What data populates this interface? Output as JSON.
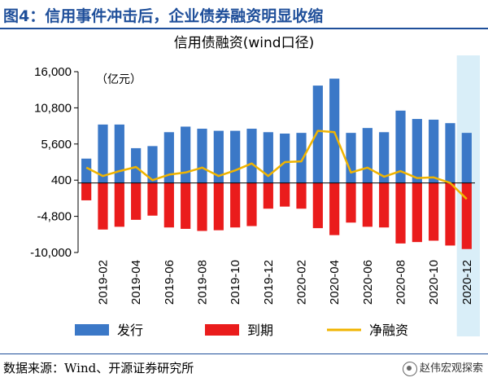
{
  "header": {
    "title": "图4：信用事件冲击后，企业债券融资明显收缩"
  },
  "footer": {
    "source": "数据来源：Wind、开源证券研究所",
    "watermark": "赵伟宏观探索"
  },
  "colors": {
    "issuance": "#3b78c7",
    "maturity": "#ea1c1c",
    "net": "#f0b400",
    "highlight": "#d9eef8"
  },
  "chart_data": {
    "type": "bar",
    "title": "信用债融资(wind口径)",
    "unit": "（亿元）",
    "categories": [
      "2019-01",
      "2019-02",
      "2019-03",
      "2019-04",
      "2019-05",
      "2019-06",
      "2019-07",
      "2019-08",
      "2019-09",
      "2019-10",
      "2019-11",
      "2019-12",
      "2020-01",
      "2020-02",
      "2020-03",
      "2020-04",
      "2020-05",
      "2020-06",
      "2020-07",
      "2020-08",
      "2020-09",
      "2020-10",
      "2020-11",
      "2020-12"
    ],
    "tick_labels": [
      "2019-02",
      "2019-04",
      "2019-06",
      "2019-08",
      "2019-10",
      "2019-12",
      "2020-02",
      "2020-04",
      "2020-06",
      "2020-08",
      "2020-10",
      "2020-12"
    ],
    "yticks": [
      16000,
      10800,
      5600,
      400,
      -4800,
      -10000
    ],
    "ytick_labels": [
      "16,000",
      "10,800",
      "5,600",
      "400",
      "-4,800",
      "-10,000"
    ],
    "ylim": [
      -10000,
      16000
    ],
    "highlight_category": "2020-12",
    "series": [
      {
        "name": "发行",
        "kind": "bar",
        "values": [
          3500,
          8400,
          8400,
          5000,
          5300,
          7300,
          8100,
          7800,
          7500,
          7500,
          7800,
          7300,
          7100,
          7200,
          14000,
          15000,
          7200,
          7900,
          7300,
          10400,
          9200,
          9100,
          8600,
          7200
        ]
      },
      {
        "name": "到期",
        "kind": "bar",
        "values": [
          -2500,
          -6700,
          -6300,
          -5300,
          -4700,
          -6400,
          -6600,
          -6900,
          -6800,
          -6400,
          -6200,
          -3700,
          -3400,
          -3700,
          -6500,
          -7500,
          -5700,
          -6300,
          -6400,
          -8700,
          -8500,
          -8300,
          -9000,
          -9500
        ]
      },
      {
        "name": "净融资",
        "kind": "line",
        "values": [
          2200,
          1000,
          1700,
          2300,
          400,
          1200,
          1500,
          2200,
          1000,
          1800,
          2800,
          1000,
          3000,
          3100,
          7500,
          7300,
          1500,
          2200,
          900,
          1700,
          700,
          800,
          0,
          -2300
        ]
      }
    ],
    "legend_position": "bottom",
    "grid": false
  }
}
